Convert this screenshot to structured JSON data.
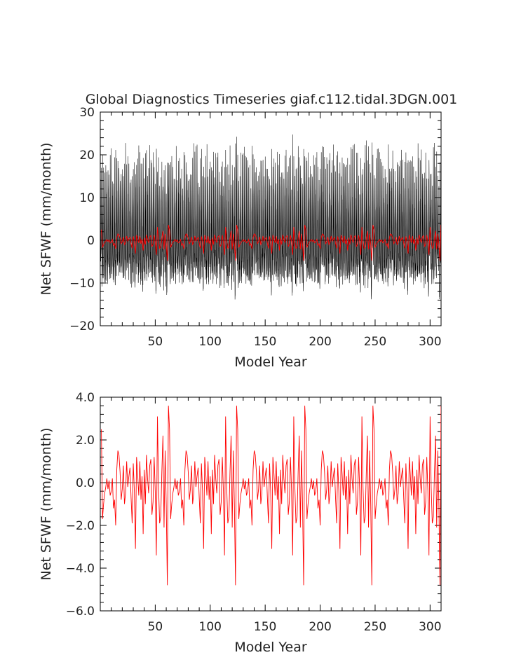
{
  "title": "Global Diagnostics Timeseries giaf.c112.tidal.3DGN.001",
  "chart_data": [
    {
      "type": "line",
      "title": "Global Diagnostics Timeseries giaf.c112.tidal.3DGN.001",
      "xlabel": "Model Year",
      "ylabel": "Net SFWF (mm/month)",
      "xlim": [
        0,
        310
      ],
      "ylim": [
        -20,
        30
      ],
      "x_ticks": [
        50,
        100,
        150,
        200,
        250,
        300
      ],
      "x_tick_labels": [
        "50",
        "100",
        "150",
        "200",
        "250",
        "300"
      ],
      "y_ticks": [
        -20,
        -10,
        0,
        10,
        20,
        30
      ],
      "y_tick_labels": [
        "−20",
        "−10",
        "0",
        "10",
        "20",
        "30"
      ],
      "grid": false,
      "zero_line": true,
      "series": [
        {
          "color": "#000000",
          "note_values": "monthly",
          "cycle_years": 62,
          "values": []
        },
        {
          "color": "#ff0000",
          "values": []
        }
      ]
    },
    {
      "type": "line",
      "xlabel": "Model Year",
      "ylabel": "Net SFWF (mm/month)",
      "xlim": [
        0,
        310
      ],
      "ylim": [
        -6,
        4
      ],
      "x_ticks": [
        50,
        100,
        150,
        200,
        250,
        300
      ],
      "x_tick_labels": [
        "50",
        "100",
        "150",
        "200",
        "250",
        "300"
      ],
      "y_ticks": [
        -6,
        -4,
        -2,
        0,
        2,
        4
      ],
      "y_tick_labels": [
        "−6.0",
        "−4.0",
        "−2.0",
        "0.0",
        "2.0",
        "4.0"
      ],
      "grid": false,
      "zero_line": true,
      "series": [
        {
          "color": "#ff0000",
          "x": [
            1,
            2,
            3,
            4,
            5,
            6,
            7,
            8,
            9,
            10,
            11,
            12,
            13,
            14,
            15,
            16,
            17,
            18,
            19,
            20,
            21,
            22,
            23,
            24,
            25,
            26,
            27,
            28,
            29,
            30,
            31,
            32,
            33,
            34,
            35,
            36,
            37,
            38,
            39,
            40,
            41,
            42,
            43,
            44,
            45,
            46,
            47,
            48,
            49,
            50,
            51,
            52,
            53,
            54,
            55,
            56,
            57,
            58,
            59,
            60,
            61,
            62
          ],
          "values": [
            2.5,
            -1.7,
            -1.0,
            -0.5,
            -0.2,
            0.2,
            -0.3,
            0.1,
            -0.6,
            -0.4,
            0.2,
            -1.2,
            -0.8,
            -2.0,
            0.6,
            1.5,
            1.3,
            0.5,
            -0.8,
            -0.3,
            0.8,
            -1.0,
            -0.5,
            1.0,
            -0.2,
            0.3,
            0.7,
            -0.7,
            -1.9,
            0.9,
            -0.4,
            -3.1,
            1.2,
            0.4,
            -0.6,
            1.0,
            -0.8,
            0.3,
            -2.4,
            0.6,
            -1.0,
            1.3,
            0.2,
            -0.5,
            0.8,
            1.1,
            -1.5,
            -0.9,
            1.2,
            -0.4,
            -3.4,
            3.1,
            -0.2,
            -1.9,
            -1.6,
            0.5,
            2.2,
            -2.1,
            1.5,
            -1.0,
            -4.8,
            3.6
          ]
        }
      ]
    }
  ]
}
